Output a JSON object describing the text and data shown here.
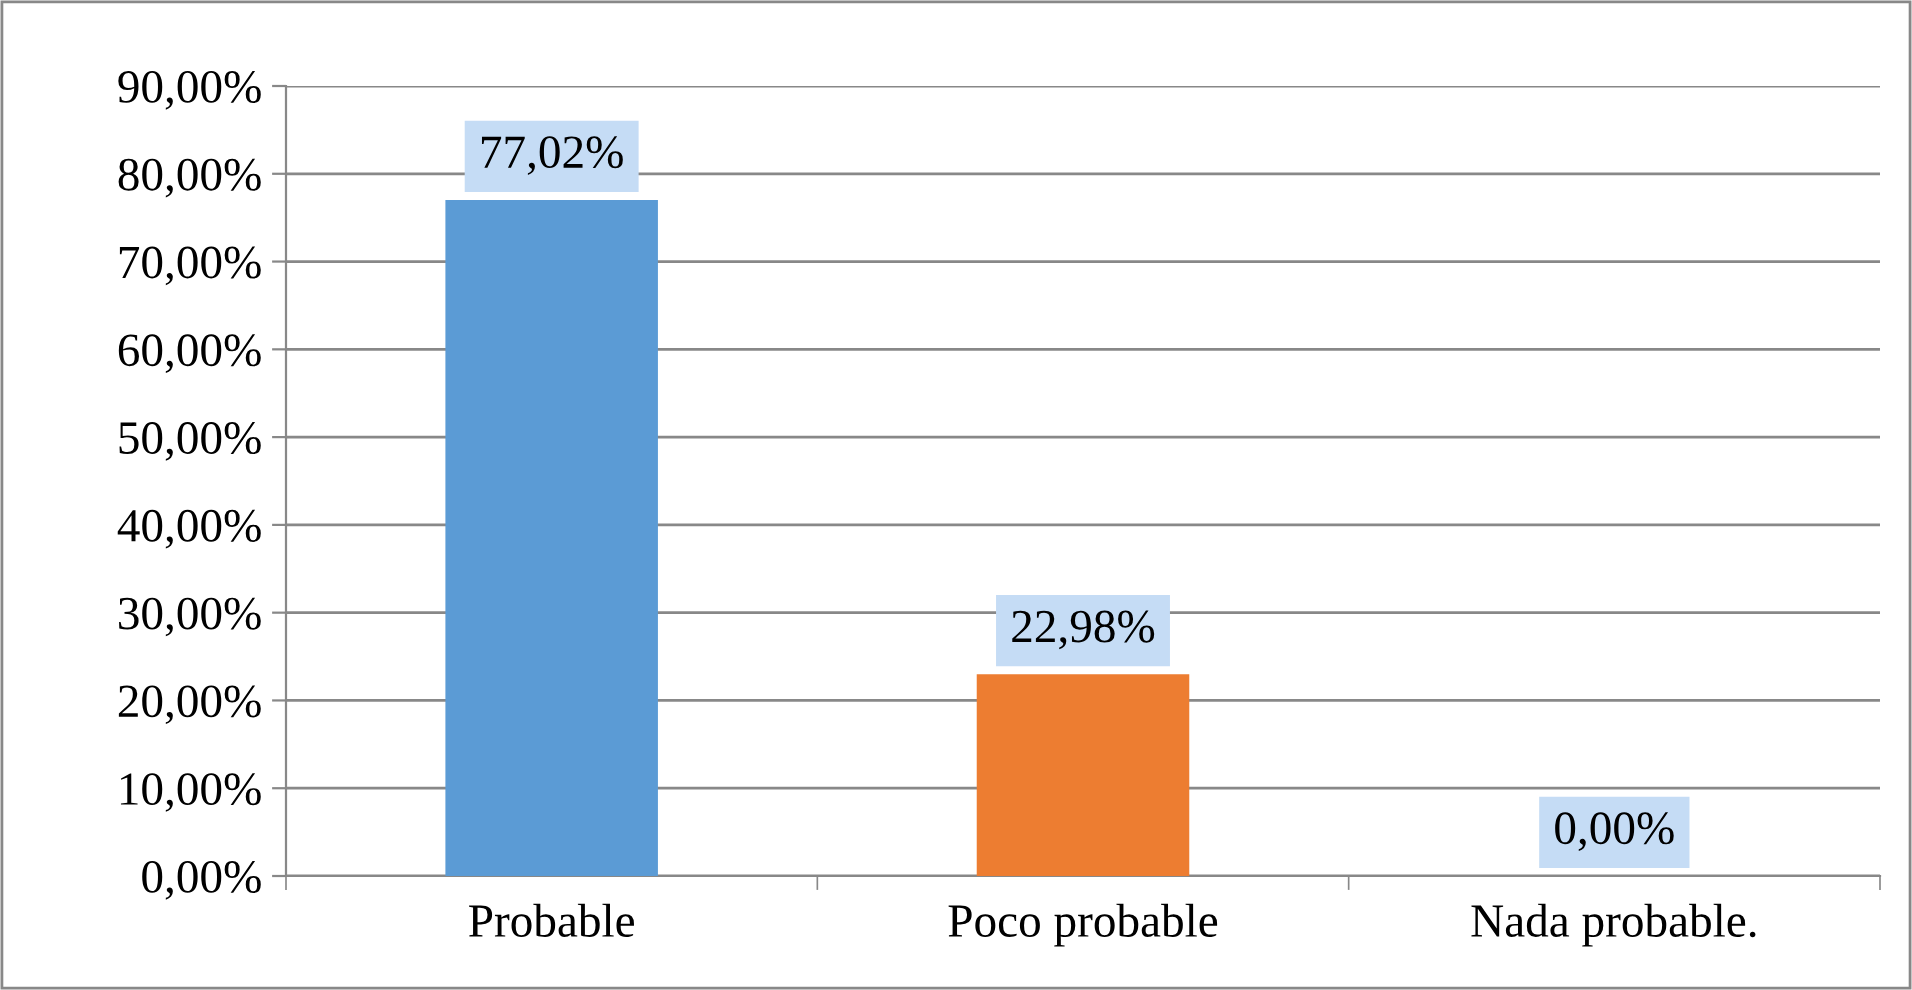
{
  "chart_data": {
    "type": "bar",
    "categories": [
      "Probable",
      "Poco probable",
      "Nada probable."
    ],
    "values": [
      77.02,
      22.98,
      0
    ],
    "colors": [
      "#5b9bd5",
      "#ed7d31",
      "#a5a5a5"
    ],
    "value_labels": [
      "77,02%",
      "22,98%",
      "0,00%"
    ],
    "ylim": [
      0,
      90
    ],
    "yticks": [
      {
        "value": 0,
        "label": "0,00%"
      },
      {
        "value": 10,
        "label": "10,00%"
      },
      {
        "value": 20,
        "label": "20,00%"
      },
      {
        "value": 30,
        "label": "30,00%"
      },
      {
        "value": 40,
        "label": "40,00%"
      },
      {
        "value": 50,
        "label": "50,00%"
      },
      {
        "value": 60,
        "label": "60,00%"
      },
      {
        "value": 70,
        "label": "70,00%"
      },
      {
        "value": 80,
        "label": "80,00%"
      },
      {
        "value": 90,
        "label": "90,00%"
      }
    ],
    "grid": "y",
    "legend": false
  }
}
